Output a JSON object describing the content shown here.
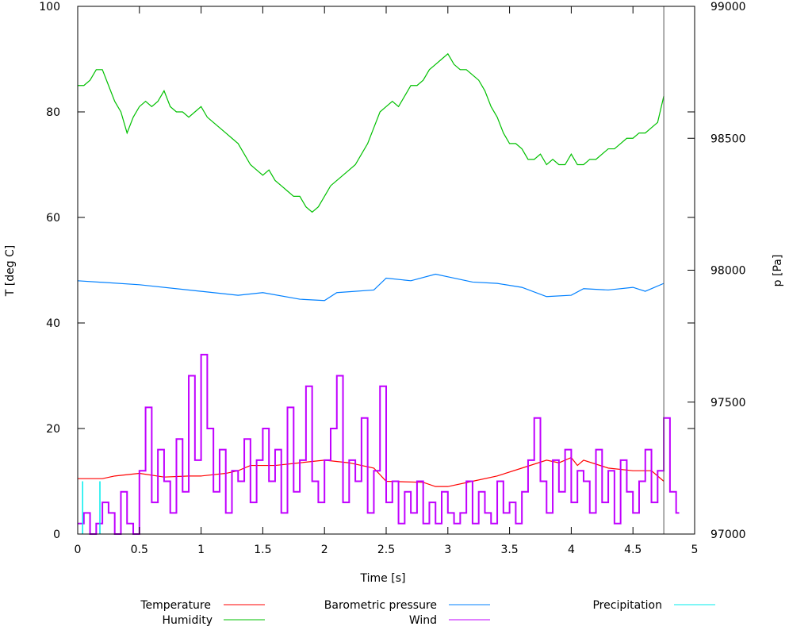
{
  "chart_data": {
    "type": "line",
    "title": "",
    "xlabel": "Time [s]",
    "ylabel": "T [deg C]",
    "y2label": "p [Pa]",
    "xlim": [
      0,
      5
    ],
    "ylim": [
      0,
      100
    ],
    "y2lim": [
      97000,
      99000
    ],
    "xticks": [
      "0",
      "0.5",
      "1",
      "1.5",
      "2",
      "2.5",
      "3",
      "3.5",
      "4",
      "4.5",
      "5"
    ],
    "yticks": [
      "0",
      "20",
      "40",
      "60",
      "80",
      "100"
    ],
    "y2ticks": [
      "97000",
      "97500",
      "98000",
      "98500",
      "99000"
    ],
    "grid": false,
    "legend_placement": "bottom",
    "data_end_marker": 4.75,
    "series": [
      {
        "name": "Temperature",
        "color": "#ff0000",
        "axis": "y",
        "step": false,
        "x": [
          0,
          0.2,
          0.3,
          0.5,
          0.7,
          0.9,
          1.0,
          1.2,
          1.3,
          1.4,
          1.6,
          1.8,
          2.0,
          2.2,
          2.4,
          2.5,
          2.8,
          2.9,
          3.0,
          3.2,
          3.4,
          3.6,
          3.8,
          3.9,
          4.0,
          4.05,
          4.1,
          4.3,
          4.5,
          4.65,
          4.75
        ],
        "y": [
          10.5,
          10.5,
          11,
          11.5,
          10.8,
          11,
          11,
          11.5,
          12,
          13,
          13,
          13.5,
          14,
          13.5,
          12.5,
          10,
          9.8,
          9,
          9,
          10,
          11,
          12.5,
          14,
          13.5,
          14.5,
          13,
          14,
          12.5,
          12,
          12,
          10
        ]
      },
      {
        "name": "Humidity",
        "color": "#00c000",
        "axis": "y",
        "step": false,
        "dx": 0.05,
        "y": [
          85,
          85,
          86,
          88,
          88,
          85,
          82,
          80,
          76,
          79,
          81,
          82,
          81,
          82,
          84,
          81,
          80,
          80,
          79,
          80,
          81,
          79,
          78,
          77,
          76,
          75,
          74,
          72,
          70,
          69,
          68,
          69,
          67,
          66,
          65,
          64,
          64,
          62,
          61,
          62,
          64,
          66,
          67,
          68,
          69,
          70,
          72,
          74,
          77,
          80,
          81,
          82,
          81,
          83,
          85,
          85,
          86,
          88,
          89,
          90,
          91,
          89,
          88,
          88,
          87,
          86,
          84,
          81,
          79,
          76,
          74,
          74,
          73,
          71,
          71,
          72,
          70,
          71,
          70,
          70,
          72,
          70,
          70,
          71,
          71,
          72,
          73,
          73,
          74,
          75,
          75,
          76,
          76,
          77,
          78,
          83
        ]
      },
      {
        "name": "Barometric pressure",
        "color": "#0080ff",
        "axis": "y2",
        "step": false,
        "x": [
          0,
          0.5,
          1.0,
          1.3,
          1.5,
          1.8,
          2.0,
          2.1,
          2.4,
          2.5,
          2.7,
          2.9,
          3.0,
          3.2,
          3.4,
          3.6,
          3.8,
          4.0,
          4.1,
          4.3,
          4.5,
          4.6,
          4.75
        ],
        "y": [
          97960,
          97945,
          97920,
          97905,
          97915,
          97890,
          97885,
          97915,
          97925,
          97970,
          97960,
          97985,
          97975,
          97955,
          97950,
          97935,
          97900,
          97905,
          97930,
          97925,
          97935,
          97920,
          97950
        ]
      },
      {
        "name": "Wind",
        "color": "#c000ff",
        "axis": "y",
        "step": true,
        "dx": 0.05,
        "y": [
          2,
          4,
          0,
          2,
          6,
          4,
          0,
          8,
          2,
          0,
          12,
          24,
          6,
          16,
          10,
          4,
          18,
          8,
          30,
          14,
          34,
          20,
          8,
          16,
          4,
          12,
          10,
          18,
          6,
          14,
          20,
          10,
          16,
          4,
          24,
          8,
          14,
          28,
          10,
          6,
          14,
          20,
          30,
          6,
          14,
          10,
          22,
          4,
          12,
          28,
          6,
          10,
          2,
          8,
          4,
          10,
          2,
          6,
          2,
          8,
          4,
          2,
          4,
          10,
          2,
          8,
          4,
          2,
          10,
          4,
          6,
          2,
          8,
          14,
          22,
          10,
          4,
          14,
          8,
          16,
          6,
          12,
          10,
          4,
          16,
          6,
          12,
          2,
          14,
          8,
          4,
          10,
          16,
          6,
          12,
          22,
          8,
          4
        ]
      },
      {
        "name": "Precipitation",
        "color": "#00eeee",
        "axis": "y",
        "impulse": true,
        "x": [
          0.04,
          0.18
        ],
        "y": [
          10,
          10
        ]
      }
    ]
  }
}
